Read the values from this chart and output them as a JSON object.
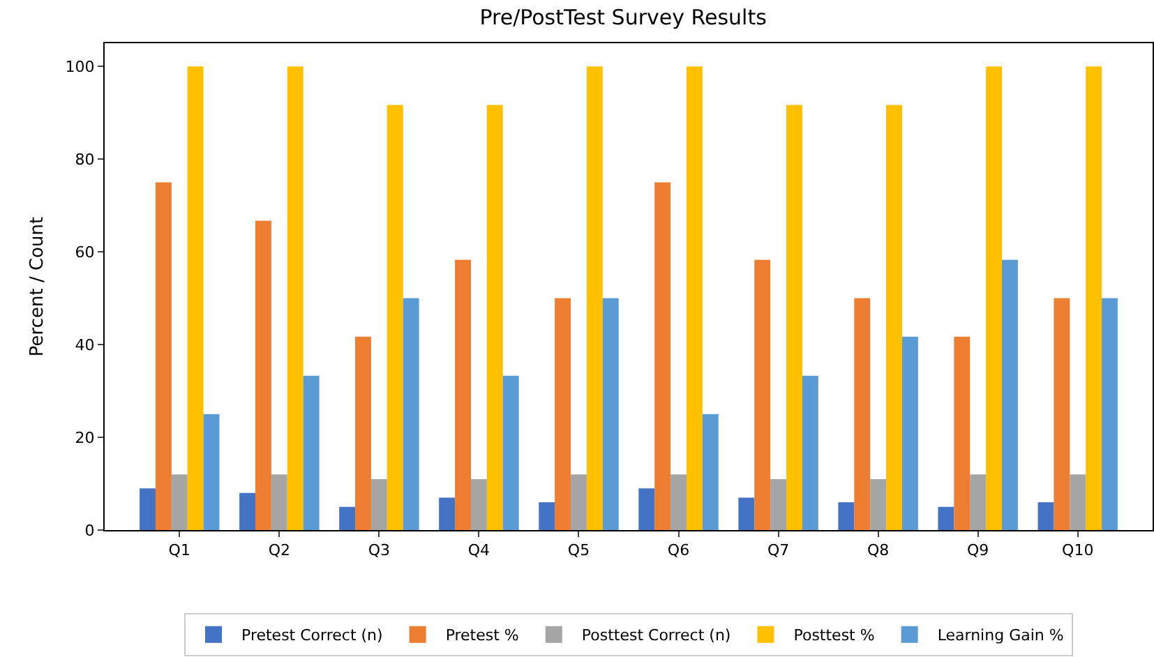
{
  "chart_data": {
    "type": "bar",
    "title": "Pre/PostTest Survey Results",
    "ylabel": "Percent / Count",
    "categories": [
      "Q1",
      "Q2",
      "Q3",
      "Q4",
      "Q5",
      "Q6",
      "Q7",
      "Q8",
      "Q9",
      "Q10"
    ],
    "series": [
      {
        "name": "Pretest Correct (n)",
        "color": "#4472c4",
        "values": [
          9,
          8,
          5,
          7,
          6,
          9,
          7,
          6,
          5,
          6
        ]
      },
      {
        "name": "Pretest %",
        "color": "#ed7d31",
        "values": [
          75,
          66.7,
          41.7,
          58.3,
          50,
          75,
          58.3,
          50,
          41.7,
          50
        ]
      },
      {
        "name": "Posttest Correct (n)",
        "color": "#a5a5a5",
        "values": [
          12,
          12,
          11,
          11,
          12,
          12,
          11,
          11,
          12,
          12
        ]
      },
      {
        "name": "Posttest %",
        "color": "#ffc000",
        "values": [
          100,
          100,
          91.7,
          91.7,
          100,
          100,
          91.7,
          91.7,
          100,
          100
        ]
      },
      {
        "name": "Learning Gain %",
        "color": "#5b9bd5",
        "values": [
          25,
          33.3,
          50,
          33.3,
          50,
          25,
          33.3,
          41.7,
          58.3,
          50
        ]
      }
    ],
    "ylim": [
      0,
      105
    ],
    "yticks": [
      0,
      20,
      40,
      60,
      80,
      100
    ],
    "grid": false,
    "legend": "bottom"
  }
}
